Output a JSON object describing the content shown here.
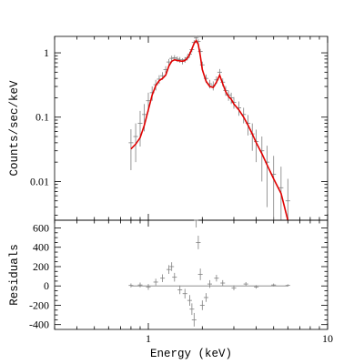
{
  "chart_data": [
    {
      "type": "line",
      "panel": "spectrum",
      "xlabel": "Energy (keV)",
      "ylabel": "Counts/sec/keV",
      "xscale": "log",
      "yscale": "log",
      "xlim": [
        0.3,
        10
      ],
      "ylim": [
        0.0025,
        1.8
      ],
      "x_ticks": [
        "1",
        "10"
      ],
      "y_ticks": [
        "1",
        "0.1",
        "0.01"
      ],
      "grid": false,
      "series": [
        {
          "role": "data",
          "color": "#7f7f7f",
          "x": [
            0.8,
            0.85,
            0.9,
            0.95,
            1.0,
            1.05,
            1.1,
            1.15,
            1.2,
            1.25,
            1.3,
            1.35,
            1.4,
            1.45,
            1.5,
            1.55,
            1.6,
            1.65,
            1.7,
            1.75,
            1.8,
            1.85,
            1.9,
            1.95,
            2.0,
            2.1,
            2.2,
            2.3,
            2.4,
            2.5,
            2.6,
            2.7,
            2.8,
            2.9,
            3.0,
            3.2,
            3.4,
            3.6,
            3.8,
            4.0,
            4.3,
            4.6,
            5.0,
            5.5,
            6.0
          ],
          "y": [
            0.04,
            0.05,
            0.08,
            0.11,
            0.18,
            0.24,
            0.32,
            0.39,
            0.44,
            0.55,
            0.72,
            0.82,
            0.84,
            0.8,
            0.78,
            0.74,
            0.78,
            0.84,
            0.95,
            1.12,
            1.45,
            1.7,
            1.5,
            1.05,
            0.65,
            0.4,
            0.33,
            0.31,
            0.38,
            0.5,
            0.35,
            0.26,
            0.22,
            0.2,
            0.17,
            0.14,
            0.11,
            0.08,
            0.055,
            0.042,
            0.03,
            0.02,
            0.013,
            0.008,
            0.005
          ],
          "err": [
            0.025,
            0.03,
            0.045,
            0.05,
            0.06,
            0.06,
            0.06,
            0.06,
            0.06,
            0.07,
            0.08,
            0.08,
            0.08,
            0.08,
            0.08,
            0.08,
            0.08,
            0.08,
            0.09,
            0.1,
            0.12,
            0.13,
            0.12,
            0.1,
            0.08,
            0.06,
            0.05,
            0.05,
            0.05,
            0.06,
            0.05,
            0.045,
            0.04,
            0.04,
            0.035,
            0.035,
            0.03,
            0.028,
            0.025,
            0.022,
            0.02,
            0.016,
            0.012,
            0.009,
            0.006
          ]
        },
        {
          "role": "model",
          "color": "#e00000",
          "x": [
            0.8,
            0.85,
            0.9,
            0.95,
            1.0,
            1.05,
            1.1,
            1.15,
            1.2,
            1.25,
            1.3,
            1.35,
            1.4,
            1.45,
            1.5,
            1.55,
            1.6,
            1.65,
            1.7,
            1.75,
            1.8,
            1.85,
            1.9,
            1.95,
            2.0,
            2.1,
            2.2,
            2.3,
            2.4,
            2.5,
            2.6,
            2.7,
            2.8,
            2.9,
            3.0,
            3.2,
            3.4,
            3.6,
            3.8,
            4.0,
            4.3,
            4.6,
            5.0,
            5.5,
            6.0
          ],
          "y": [
            0.032,
            0.038,
            0.048,
            0.075,
            0.13,
            0.22,
            0.31,
            0.37,
            0.4,
            0.45,
            0.62,
            0.74,
            0.78,
            0.76,
            0.75,
            0.74,
            0.76,
            0.82,
            0.95,
            1.15,
            1.4,
            1.55,
            1.35,
            0.9,
            0.55,
            0.36,
            0.3,
            0.29,
            0.35,
            0.45,
            0.33,
            0.25,
            0.21,
            0.19,
            0.16,
            0.13,
            0.1,
            0.075,
            0.055,
            0.04,
            0.027,
            0.018,
            0.011,
            0.0065,
            0.0025
          ]
        }
      ]
    },
    {
      "type": "line",
      "panel": "residuals",
      "xlabel": "Energy (keV)",
      "ylabel": "Residuals",
      "xscale": "log",
      "xlim": [
        0.3,
        10
      ],
      "ylim": [
        -450,
        680
      ],
      "y_ticks": [
        "600",
        "400",
        "200",
        "0",
        "-200",
        "-400"
      ],
      "grid": false,
      "series": [
        {
          "role": "residuals",
          "color": "#7f7f7f",
          "x": [
            0.8,
            0.9,
            1.0,
            1.1,
            1.2,
            1.3,
            1.35,
            1.4,
            1.5,
            1.6,
            1.7,
            1.75,
            1.8,
            1.85,
            1.9,
            1.95,
            2.0,
            2.1,
            2.2,
            2.4,
            2.6,
            3.0,
            3.5,
            4.0,
            5.0,
            6.0
          ],
          "y": [
            5,
            10,
            -10,
            40,
            80,
            170,
            200,
            90,
            -40,
            -80,
            -150,
            -240,
            -350,
            680,
            450,
            120,
            -200,
            -120,
            20,
            80,
            30,
            -20,
            20,
            -10,
            10,
            5
          ],
          "err": [
            20,
            25,
            30,
            35,
            40,
            45,
            45,
            45,
            45,
            50,
            55,
            60,
            70,
            75,
            70,
            60,
            50,
            45,
            40,
            35,
            30,
            25,
            20,
            18,
            15,
            12
          ]
        }
      ]
    }
  ]
}
